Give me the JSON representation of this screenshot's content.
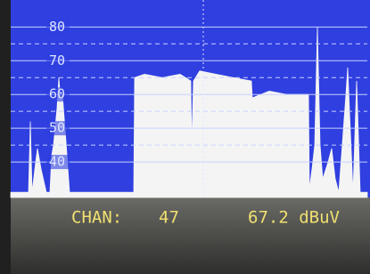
{
  "chart_data": {
    "type": "area",
    "x": [
      0,
      20,
      22,
      24,
      28,
      30,
      34,
      40,
      44,
      46,
      48,
      52,
      54,
      56,
      58,
      62,
      66,
      138,
      139,
      150,
      170,
      190,
      202,
      203,
      205,
      212,
      230,
      250,
      270,
      271,
      290,
      310,
      334,
      335,
      338,
      341,
      344,
      347,
      350,
      356,
      360,
      364,
      368,
      376,
      378,
      380,
      384,
      388,
      392,
      400
    ],
    "values": [
      31,
      31,
      52,
      31,
      40,
      44,
      38,
      31,
      31,
      42,
      45,
      56,
      65,
      58,
      60,
      46,
      31,
      31,
      65,
      66,
      65,
      66,
      64,
      45,
      64,
      67,
      66,
      65,
      64,
      59,
      61,
      60,
      60,
      32,
      38,
      45,
      80,
      45,
      35,
      40,
      44,
      35,
      31,
      60,
      68,
      55,
      31,
      64,
      31,
      31
    ],
    "color": "#f4f4f4",
    "xlim": [
      0,
      400
    ],
    "ylim": [
      30,
      88
    ],
    "yticks": [
      40,
      50,
      60,
      70,
      80
    ],
    "grid": true,
    "readout": {
      "label": "CHAN:",
      "channel": "47",
      "level": "67.2 dBuV"
    }
  }
}
